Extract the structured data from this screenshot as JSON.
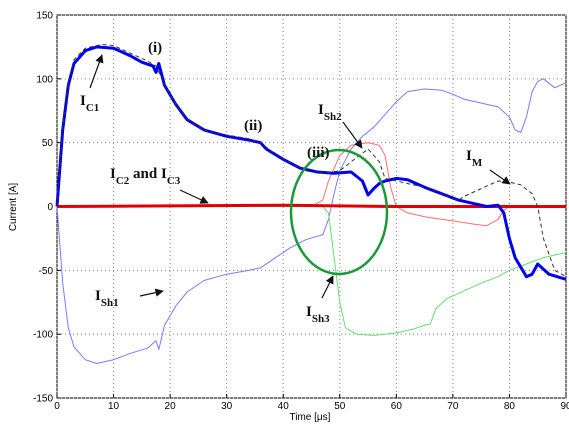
{
  "chart_data": {
    "type": "line",
    "xlabel": "Time [μs]",
    "ylabel": "Current [A]",
    "xlim": [
      0,
      90
    ],
    "xticks": [
      0,
      10,
      20,
      30,
      40,
      50,
      60,
      70,
      80,
      90
    ],
    "ylim": [
      -150,
      150
    ],
    "yticks": [
      -150,
      -100,
      -50,
      0,
      50,
      100,
      150
    ],
    "grid": true,
    "series": [
      {
        "color": "#7a7aff",
        "width": 1,
        "dashed": false,
        "x": [
          0,
          1,
          2,
          3,
          5,
          7,
          10,
          13,
          16,
          17.5,
          18,
          19,
          21,
          23,
          26,
          30,
          34,
          36,
          38,
          41,
          44,
          47,
          48,
          49,
          50,
          52,
          54,
          56,
          58,
          60,
          62,
          65,
          68,
          70,
          72,
          74,
          76,
          78,
          80,
          81,
          82,
          83,
          84,
          85,
          86,
          88,
          90
        ],
        "values": [
          0,
          -60,
          -95,
          -110,
          -120,
          -123,
          -120,
          -115,
          -111,
          -105,
          -112,
          -93,
          -78,
          -67,
          -58,
          -53,
          -50,
          -48,
          -42,
          -33,
          -26,
          -22,
          -10,
          10,
          28,
          45,
          55,
          62,
          72,
          82,
          90,
          92,
          91,
          88,
          84,
          82,
          80,
          78,
          70,
          60,
          58,
          70,
          90,
          98,
          100,
          93,
          97
        ]
      },
      {
        "color": "#ff7070",
        "width": 1,
        "dashed": false,
        "x": [
          0,
          45,
          47,
          48,
          50,
          52,
          55,
          57,
          58,
          59,
          60,
          62,
          65,
          68,
          71,
          74,
          76,
          78,
          79,
          80,
          90
        ],
        "values": [
          0,
          0,
          5,
          20,
          40,
          48,
          50,
          48,
          40,
          15,
          0,
          -5,
          -8,
          -10,
          -12,
          -14,
          -15,
          -10,
          -3,
          0,
          0
        ]
      },
      {
        "color": "#66e066",
        "width": 1,
        "dashed": false,
        "x": [
          0,
          47,
          48,
          49,
          50,
          51,
          53,
          56,
          60,
          63,
          65,
          66,
          67,
          69,
          72,
          75,
          78,
          80,
          83,
          86,
          90
        ],
        "values": [
          0,
          0,
          -5,
          -40,
          -75,
          -95,
          -100,
          -101,
          -99,
          -96,
          -93,
          -92,
          -80,
          -72,
          -66,
          -60,
          -55,
          -50,
          -45,
          -40,
          -36
        ]
      },
      {
        "color": "#e00000",
        "width": 3,
        "dashed": false,
        "x": [
          0,
          20,
          40,
          60,
          90
        ],
        "values": [
          0,
          0.5,
          1,
          0,
          0
        ]
      },
      {
        "color": "#0000ee",
        "width": 3,
        "dashed": false,
        "x": [
          0,
          1,
          2,
          3,
          5,
          7,
          10,
          13,
          15,
          17,
          17.5,
          18,
          19,
          21,
          23,
          26,
          30,
          34,
          36,
          37,
          40,
          43,
          46,
          49,
          52,
          54,
          55,
          56,
          57,
          58,
          60,
          62,
          65,
          68,
          71,
          73,
          76,
          78,
          79,
          80,
          81,
          83,
          84,
          85,
          87,
          90
        ],
        "values": [
          0,
          60,
          95,
          112,
          122,
          125,
          124,
          118,
          113,
          110,
          105,
          112,
          95,
          80,
          68,
          60,
          55,
          52,
          50,
          45,
          37,
          30,
          27,
          26,
          27,
          20,
          9,
          14,
          18,
          20,
          22,
          21,
          15,
          10,
          5,
          3,
          0,
          1,
          -5,
          -25,
          -40,
          -55,
          -53,
          -45,
          -53,
          -57
        ]
      },
      {
        "color": "#333333",
        "width": 1,
        "dashed": true,
        "x": [
          0,
          1,
          2,
          3,
          5,
          8,
          10,
          13,
          16,
          17.5,
          19,
          21,
          23,
          26,
          30,
          34,
          36,
          38,
          41,
          44,
          47,
          50,
          52,
          55,
          57,
          58,
          60,
          63,
          66,
          69,
          71,
          72,
          74,
          76,
          78,
          80,
          82,
          84,
          85,
          86,
          88,
          90
        ],
        "values": [
          0,
          62,
          98,
          115,
          124,
          127,
          126,
          120,
          114,
          110,
          96,
          80,
          68,
          60,
          56,
          53,
          50,
          43,
          35,
          28,
          26,
          28,
          35,
          45,
          35,
          22,
          20,
          17,
          14,
          8,
          5,
          8,
          12,
          16,
          20,
          19,
          17,
          10,
          0,
          -25,
          -50,
          -55
        ]
      }
    ],
    "annotations": [
      {
        "parts": [
          {
            "text": "(i)",
            "sub": false
          }
        ]
      },
      {
        "parts": [
          {
            "text": "I",
            "sub": false
          },
          {
            "text": "C1",
            "sub": true
          }
        ]
      },
      {
        "parts": [
          {
            "text": "(ii)",
            "sub": false
          }
        ]
      },
      {
        "parts": [
          {
            "text": "(iii)",
            "sub": false
          }
        ]
      },
      {
        "parts": [
          {
            "text": "I",
            "sub": false
          },
          {
            "text": "Sh2",
            "sub": true
          }
        ]
      },
      {
        "parts": [
          {
            "text": "I",
            "sub": false
          },
          {
            "text": "C2",
            "sub": true
          },
          {
            "text": " and I",
            "sub": false
          },
          {
            "text": "C3",
            "sub": true
          }
        ]
      },
      {
        "parts": [
          {
            "text": "I",
            "sub": false
          },
          {
            "text": "M",
            "sub": true
          }
        ]
      },
      {
        "parts": [
          {
            "text": "I",
            "sub": false
          },
          {
            "text": "Sh1",
            "sub": true
          }
        ]
      },
      {
        "parts": [
          {
            "text": "I",
            "sub": false
          },
          {
            "text": "Sh3",
            "sub": true
          }
        ]
      }
    ]
  }
}
